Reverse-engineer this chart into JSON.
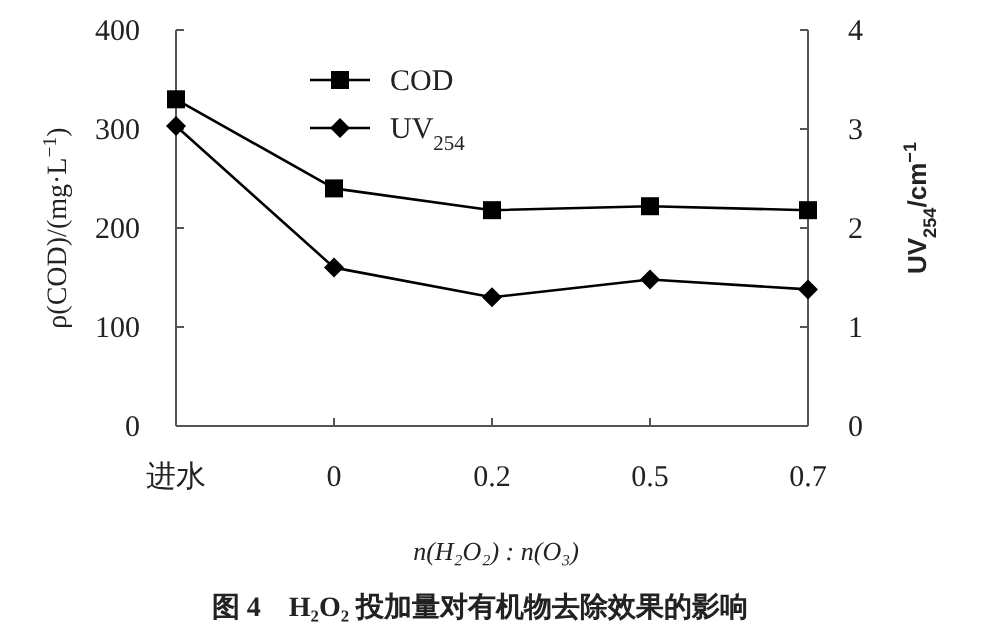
{
  "chart_data": {
    "type": "line",
    "title": "图 4　H₂O₂ 投加量对有机物去除效果的影响",
    "xlabel": "n(H₂O₂) : n(O₃)",
    "ylabel": "ρ(COD)/(mg·L$^{−1}$)",
    "y2label": "UV$_{254}$/cm$^{−1}$",
    "categories": [
      "进水",
      "0",
      "0.2",
      "0.5",
      "0.7"
    ],
    "series": [
      {
        "name": "COD",
        "color": "#000000",
        "marker": "square",
        "values": [
          330,
          240,
          218,
          222,
          218
        ]
      },
      {
        "name": "UV$_{254}$",
        "color": "#000000",
        "marker": "diamond",
        "axis": "y2",
        "values": [
          3.03,
          1.6,
          1.3,
          1.48,
          1.38
        ]
      }
    ],
    "ylim": [
      0,
      400
    ],
    "yticks": [
      0,
      100,
      200,
      300,
      400
    ],
    "y2lim": [
      0,
      4
    ],
    "y2ticks": [
      0,
      1,
      2,
      3,
      4
    ],
    "legend": "top left",
    "line_style": "solid"
  }
}
